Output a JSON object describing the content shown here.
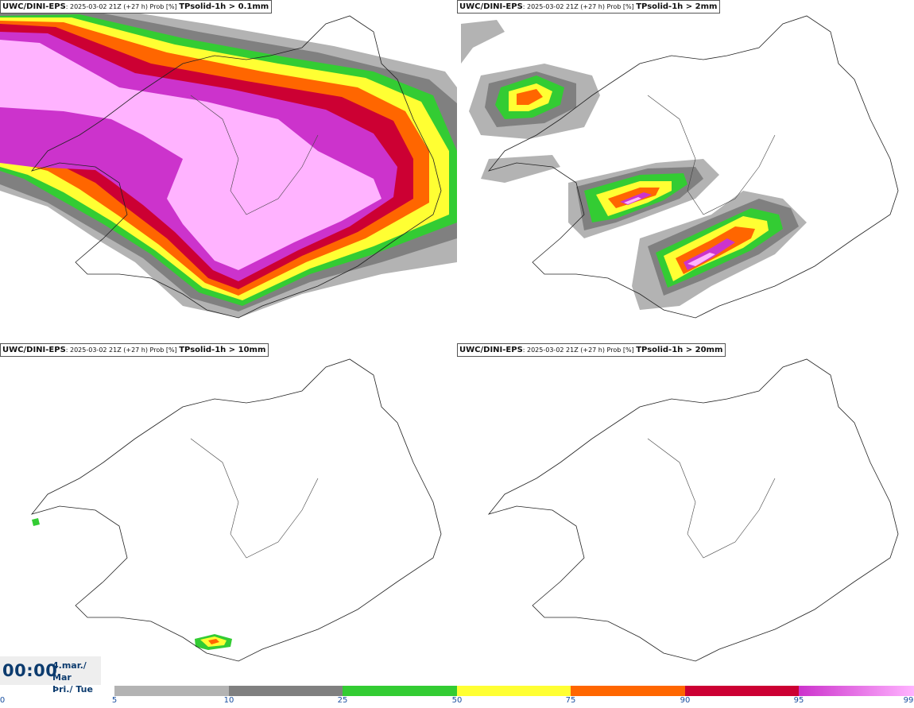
{
  "panels": [
    {
      "model": "UWC/DINI-EPS",
      "meta": ": 2025-03-02 21Z (+27 h) Prob [%] ",
      "field": "TPsolid-1h > 0.1mm"
    },
    {
      "model": "UWC/DINI-EPS",
      "meta": ": 2025-03-02 21Z (+27 h) Prob [%] ",
      "field": "TPsolid-1h > 2mm"
    },
    {
      "model": "UWC/DINI-EPS",
      "meta": ": 2025-03-02 21Z (+27 h) Prob [%] ",
      "field": "TPsolid-1h > 10mm"
    },
    {
      "model": "UWC/DINI-EPS",
      "meta": ": 2025-03-02 21Z (+27 h) Prob [%] ",
      "field": "TPsolid-1h > 20mm"
    }
  ],
  "time": {
    "hhmm": "00:00",
    "date_line1": "4.mar./ Mar",
    "date_line2": "Þri./ Tue"
  },
  "scale": {
    "labels": [
      "0",
      "5",
      "10",
      "25",
      "50",
      "75",
      "90",
      "95",
      "99"
    ],
    "colors": {
      "c5": "#b3b3b3",
      "c10": "#808080",
      "c25": "#33cc33",
      "c50": "#ffff33",
      "c75": "#ff6600",
      "c90": "#cc0033",
      "c95": "#cc33cc",
      "c99": "#ffb3ff"
    }
  }
}
